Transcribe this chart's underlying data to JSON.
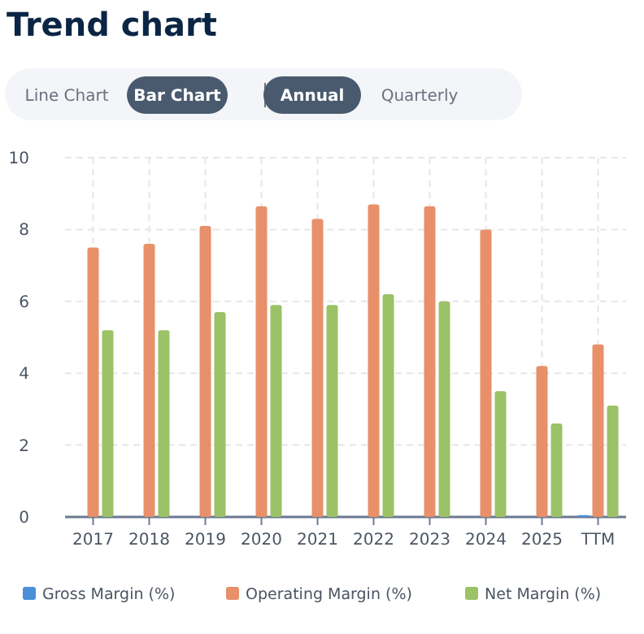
{
  "chart_data": {
    "type": "bar",
    "title": "Trend chart",
    "annotations": [
      "Line Chart",
      "Bar Chart",
      "Annual",
      "Quarterly"
    ],
    "categories": [
      "2017",
      "2018",
      "2019",
      "2020",
      "2021",
      "2022",
      "2023",
      "2024",
      "2025",
      "TTM"
    ],
    "series": [
      {
        "name": "Gross Margin (%)",
        "color": "#4a90d9",
        "values": [
          null,
          null,
          null,
          null,
          null,
          null,
          null,
          null,
          null,
          0.05
        ]
      },
      {
        "name": "Operating Margin (%)",
        "color": "#e8906a",
        "values": [
          7.5,
          7.6,
          8.1,
          8.65,
          8.3,
          8.7,
          8.65,
          8.0,
          4.2,
          4.8
        ]
      },
      {
        "name": "Net Margin (%)",
        "color": "#9bc266",
        "values": [
          5.2,
          5.2,
          5.7,
          5.9,
          5.9,
          6.2,
          6.0,
          3.5,
          2.6,
          3.1
        ]
      }
    ],
    "ylim": [
      0,
      10
    ],
    "yticks": [
      0,
      2,
      4,
      6,
      8,
      10
    ],
    "grid": true,
    "legend": "bottom"
  }
}
